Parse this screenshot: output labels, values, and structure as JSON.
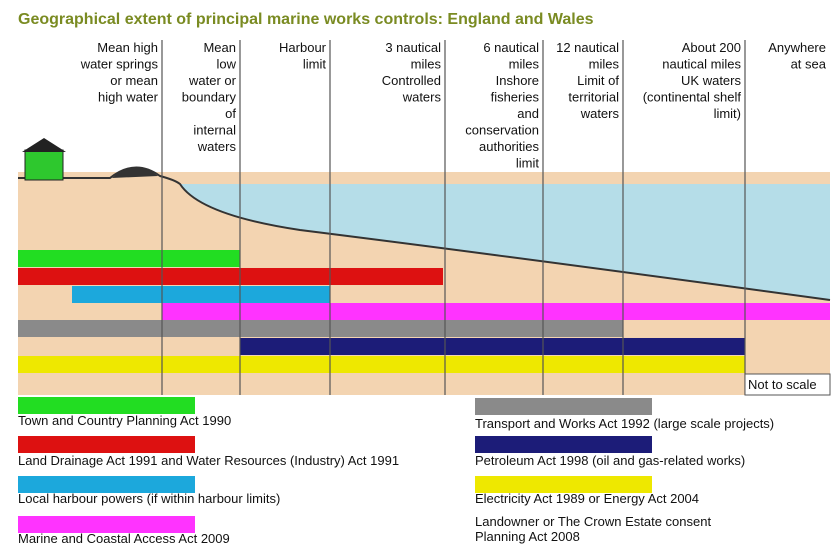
{
  "title": "Geographical extent of principal marine works controls: England and Wales",
  "columns": [
    [
      "Mean high",
      "water springs",
      "or mean",
      "high water"
    ],
    [
      "Mean",
      "low",
      "water or",
      "boundary",
      "of",
      "internal",
      "waters"
    ],
    [
      "Harbour",
      "limit"
    ],
    [
      "3 nautical",
      "miles",
      "Controlled",
      "waters"
    ],
    [
      "6 nautical",
      "miles",
      "Inshore",
      "fisheries",
      "and",
      "conservation",
      "authorities",
      "limit"
    ],
    [
      "12 nautical",
      "miles",
      "Limit of",
      "territorial",
      "waters"
    ],
    [
      "About 200",
      "nautical miles",
      "UK waters",
      "(continental shelf",
      "limit)"
    ],
    [
      "Anywhere",
      "at sea"
    ]
  ],
  "note": "Not to scale",
  "legend": [
    {
      "label": "Town and Country Planning Act 1990",
      "color": "#22dd22"
    },
    {
      "label": "Land Drainage Act 1991 and Water Resources (Industry) Act 1991",
      "color": "#dd1111"
    },
    {
      "label": "Local harbour powers (if within harbour limits)",
      "color": "#1ca8dc"
    },
    {
      "label": "Marine and Coastal Access Act 2009",
      "color": "#ff33ff"
    },
    {
      "label": "Transport and Works Act 1992 (large scale projects)",
      "color": "#8a8a8a"
    },
    {
      "label": "Petroleum Act 1998 (oil and gas-related works)",
      "color": "#1c1c78"
    },
    {
      "label": "Electricity Act 1989 or Energy Act 2004",
      "color": "#eee800"
    }
  ],
  "extra_lines": [
    "Landowner or The Crown Estate consent",
    "Planning Act 2008"
  ]
}
